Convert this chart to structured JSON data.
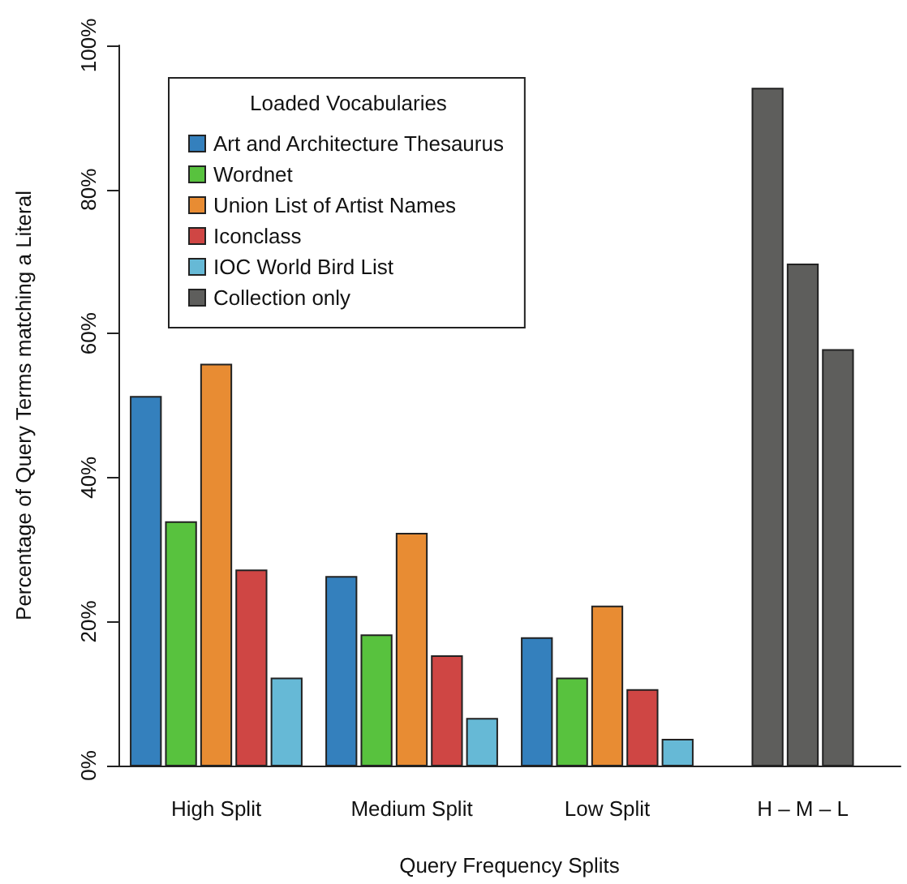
{
  "chart_data": {
    "type": "bar",
    "xlabel": "Query Frequency Splits",
    "ylabel": "Percentage of Query Terms matching a Literal",
    "legend_title": "Loaded Vocabularies",
    "legend": "top left",
    "categories": [
      "High Split",
      "Medium Split",
      "Low Split",
      "H – M – L"
    ],
    "ylim": [
      0,
      100
    ],
    "yticks": [
      {
        "value": 0,
        "label": "0%"
      },
      {
        "value": 20,
        "label": "20%"
      },
      {
        "value": 40,
        "label": "40%"
      },
      {
        "value": 60,
        "label": "60%"
      },
      {
        "value": 80,
        "label": "80%"
      },
      {
        "value": 100,
        "label": "100%"
      }
    ],
    "series": [
      {
        "name": "Art and Architecture Thesaurus",
        "color": "#3480bd",
        "values": [
          51.2,
          26.2,
          17.7,
          null
        ]
      },
      {
        "name": "Wordnet",
        "color": "#58c23e",
        "values": [
          33.8,
          18.1,
          12.1,
          null
        ]
      },
      {
        "name": "Union List of Artist Names",
        "color": "#e88c33",
        "values": [
          55.7,
          32.2,
          22.1,
          null
        ]
      },
      {
        "name": "Iconclass",
        "color": "#cf4644",
        "values": [
          27.1,
          15.2,
          10.5,
          null
        ]
      },
      {
        "name": "IOC World Bird List",
        "color": "#66b9d6",
        "values": [
          12.1,
          6.5,
          3.6,
          null
        ]
      },
      {
        "name": "Collection only",
        "color": "#5e5e5c",
        "values": [
          null,
          null,
          null,
          94.0
        ]
      },
      {
        "color": "#5e5e5c",
        "values": [
          null,
          null,
          null,
          69.6
        ]
      },
      {
        "color": "#5e5e5c",
        "values": [
          null,
          null,
          null,
          57.7
        ]
      }
    ]
  }
}
